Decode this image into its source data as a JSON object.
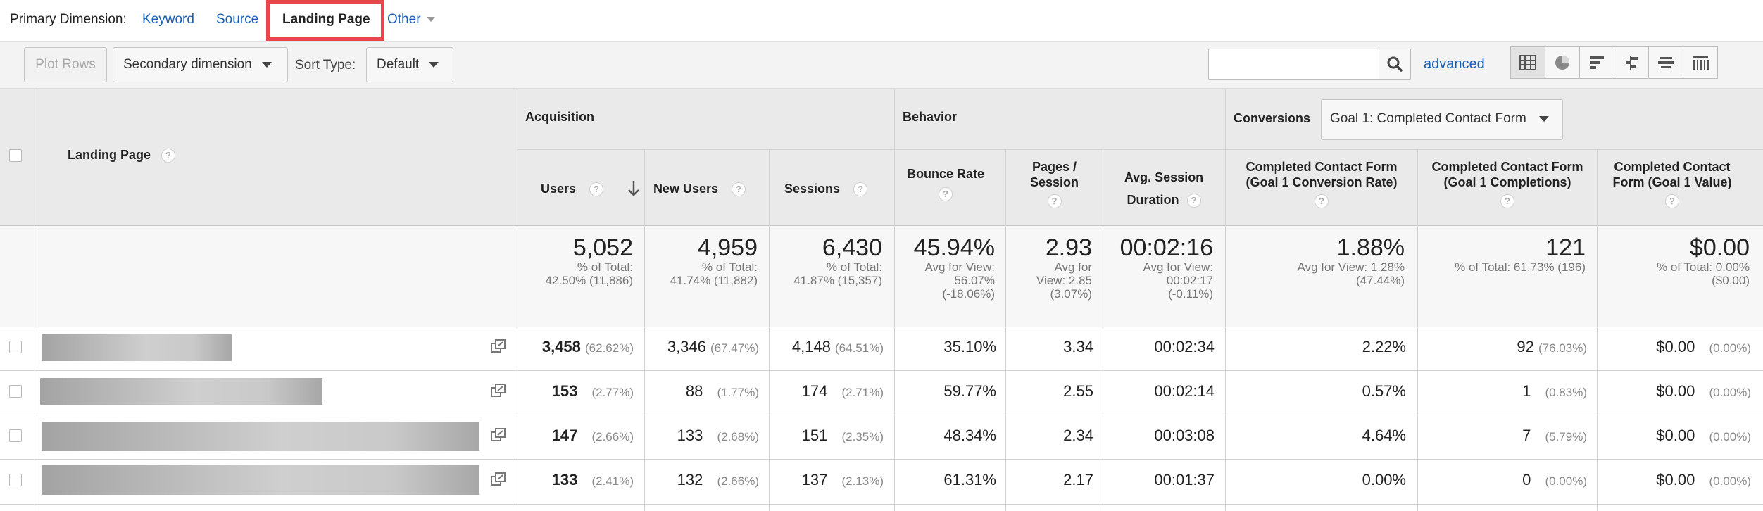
{
  "primary_dimension": {
    "label": "Primary Dimension:",
    "options": [
      "Keyword",
      "Source",
      "Landing Page",
      "Other"
    ],
    "active": "Landing Page"
  },
  "toolbar": {
    "plot_rows": "Plot Rows",
    "secondary_dimension": "Secondary dimension",
    "sort_type_label": "Sort Type:",
    "sort_type_value": "Default",
    "search_placeholder": "",
    "advanced": "advanced"
  },
  "table": {
    "groups": {
      "acquisition": "Acquisition",
      "behavior": "Behavior",
      "conversions": "Conversions",
      "conversion_goal": "Goal 1: Completed Contact Form"
    },
    "headers": {
      "landing_page": "Landing Page",
      "users": "Users",
      "new_users": "New Users",
      "sessions": "Sessions",
      "bounce_rate": "Bounce Rate",
      "pages_session_1": "Pages /",
      "pages_session_2": "Session",
      "avg_session_1": "Avg. Session",
      "avg_session_2": "Duration",
      "conv_rate_1": "Completed Contact Form",
      "conv_rate_2": "(Goal 1 Conversion Rate)",
      "completions_1": "Completed Contact Form",
      "completions_2": "(Goal 1 Completions)",
      "value_1": "Completed Contact",
      "value_2": "Form (Goal 1 Value)"
    },
    "totals": {
      "users": {
        "value": "5,052",
        "sub": [
          "% of Total:",
          "42.50% (11,886)"
        ]
      },
      "new_users": {
        "value": "4,959",
        "sub": [
          "% of Total:",
          "41.74% (11,882)"
        ]
      },
      "sessions": {
        "value": "6,430",
        "sub": [
          "% of Total:",
          "41.87% (15,357)"
        ]
      },
      "bounce_rate": {
        "value": "45.94%",
        "sub": [
          "Avg for View:",
          "56.07%",
          "(-18.06%)"
        ]
      },
      "pages_session": {
        "value": "2.93",
        "sub": [
          "Avg for",
          "View: 2.85",
          "(3.07%)"
        ]
      },
      "avg_duration": {
        "value": "00:02:16",
        "sub": [
          "Avg for View:",
          "00:02:17",
          "(-0.11%)"
        ]
      },
      "conv_rate": {
        "value": "1.88%",
        "sub": [
          "Avg for View: 1.28%",
          "(47.44%)"
        ]
      },
      "completions": {
        "value": "121",
        "sub": [
          "% of Total: 61.73% (196)"
        ]
      },
      "value": {
        "value": "$0.00",
        "sub": [
          "% of Total: 0.00%",
          "($0.00)"
        ]
      }
    },
    "rows": [
      {
        "users": "3,458",
        "users_pct": "(62.62%)",
        "new_users": "3,346",
        "new_users_pct": "(67.47%)",
        "sessions": "4,148",
        "sessions_pct": "(64.51%)",
        "bounce_rate": "35.10%",
        "pages_session": "3.34",
        "avg_duration": "00:02:34",
        "conv_rate": "2.22%",
        "completions": "92",
        "completions_pct": "(76.03%)",
        "value": "$0.00",
        "value_pct": "(0.00%)"
      },
      {
        "users": "153",
        "users_pct": "(2.77%)",
        "new_users": "88",
        "new_users_pct": "(1.77%)",
        "sessions": "174",
        "sessions_pct": "(2.71%)",
        "bounce_rate": "59.77%",
        "pages_session": "2.55",
        "avg_duration": "00:02:14",
        "conv_rate": "0.57%",
        "completions": "1",
        "completions_pct": "(0.83%)",
        "value": "$0.00",
        "value_pct": "(0.00%)"
      },
      {
        "users": "147",
        "users_pct": "(2.66%)",
        "new_users": "133",
        "new_users_pct": "(2.68%)",
        "sessions": "151",
        "sessions_pct": "(2.35%)",
        "bounce_rate": "48.34%",
        "pages_session": "2.34",
        "avg_duration": "00:03:08",
        "conv_rate": "4.64%",
        "completions": "7",
        "completions_pct": "(5.79%)",
        "value": "$0.00",
        "value_pct": "(0.00%)"
      },
      {
        "users": "133",
        "users_pct": "(2.41%)",
        "new_users": "132",
        "new_users_pct": "(2.66%)",
        "sessions": "137",
        "sessions_pct": "(2.13%)",
        "bounce_rate": "61.31%",
        "pages_session": "2.17",
        "avg_duration": "00:01:37",
        "conv_rate": "0.00%",
        "completions": "0",
        "completions_pct": "(0.00%)",
        "value": "$0.00",
        "value_pct": "(0.00%)"
      }
    ]
  },
  "icons": {
    "search": "search-icon",
    "sort": "sort-down-arrow-icon",
    "external": "open-external-icon",
    "views": [
      "table-view-icon",
      "pie-view-icon",
      "performance-view-icon",
      "comparison-view-icon",
      "term-cloud-view-icon",
      "pivot-view-icon"
    ]
  },
  "colors": {
    "link": "#1a5fb4",
    "highlight": "#e8454c",
    "header_bg": "#eaeaea"
  }
}
